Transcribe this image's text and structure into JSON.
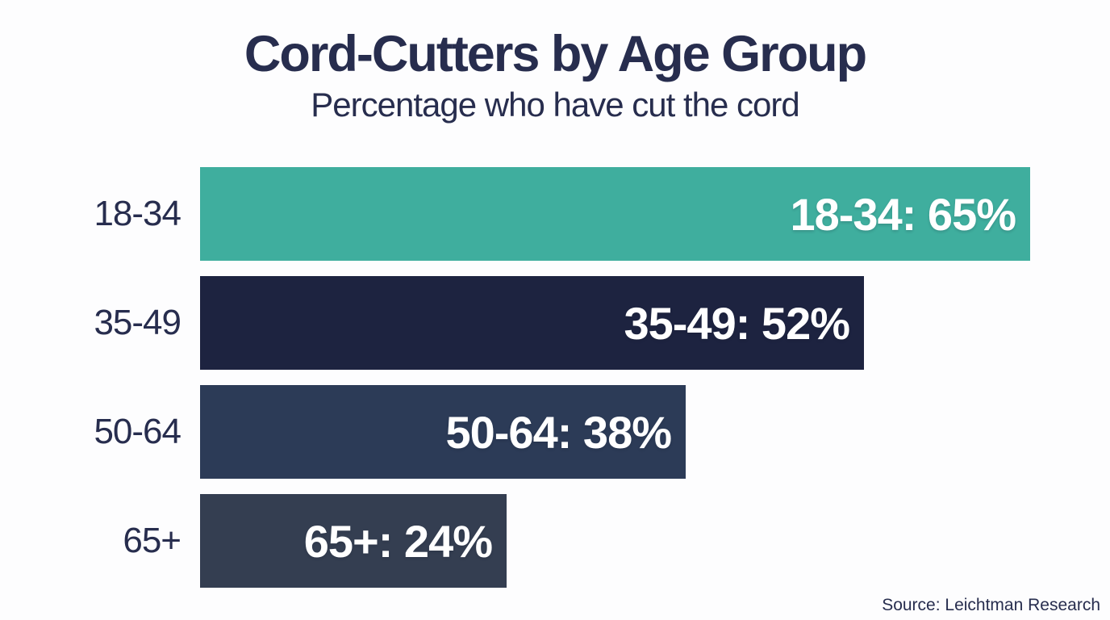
{
  "chart_data": {
    "type": "bar",
    "orientation": "horizontal",
    "title": "Cord-Cutters by Age Group",
    "subtitle": "Percentage who have cut the cord",
    "categories": [
      "18-34",
      "35-49",
      "50-64",
      "65+"
    ],
    "values": [
      65,
      52,
      38,
      24
    ],
    "value_unit": "%",
    "bar_labels": [
      "18-34: 65%",
      "35-49: 52%",
      "50-64: 38%",
      "65+: 24%"
    ],
    "bar_colors": [
      "#3fae9e",
      "#1d2340",
      "#2c3b57",
      "#343e51"
    ],
    "bar_label_color": "#ffffff",
    "text_color": "#272d4e",
    "background_color": "#fdfdfe",
    "axes": "none",
    "grid": false,
    "legend": "none",
    "source": "Source: Leichtman Research"
  }
}
